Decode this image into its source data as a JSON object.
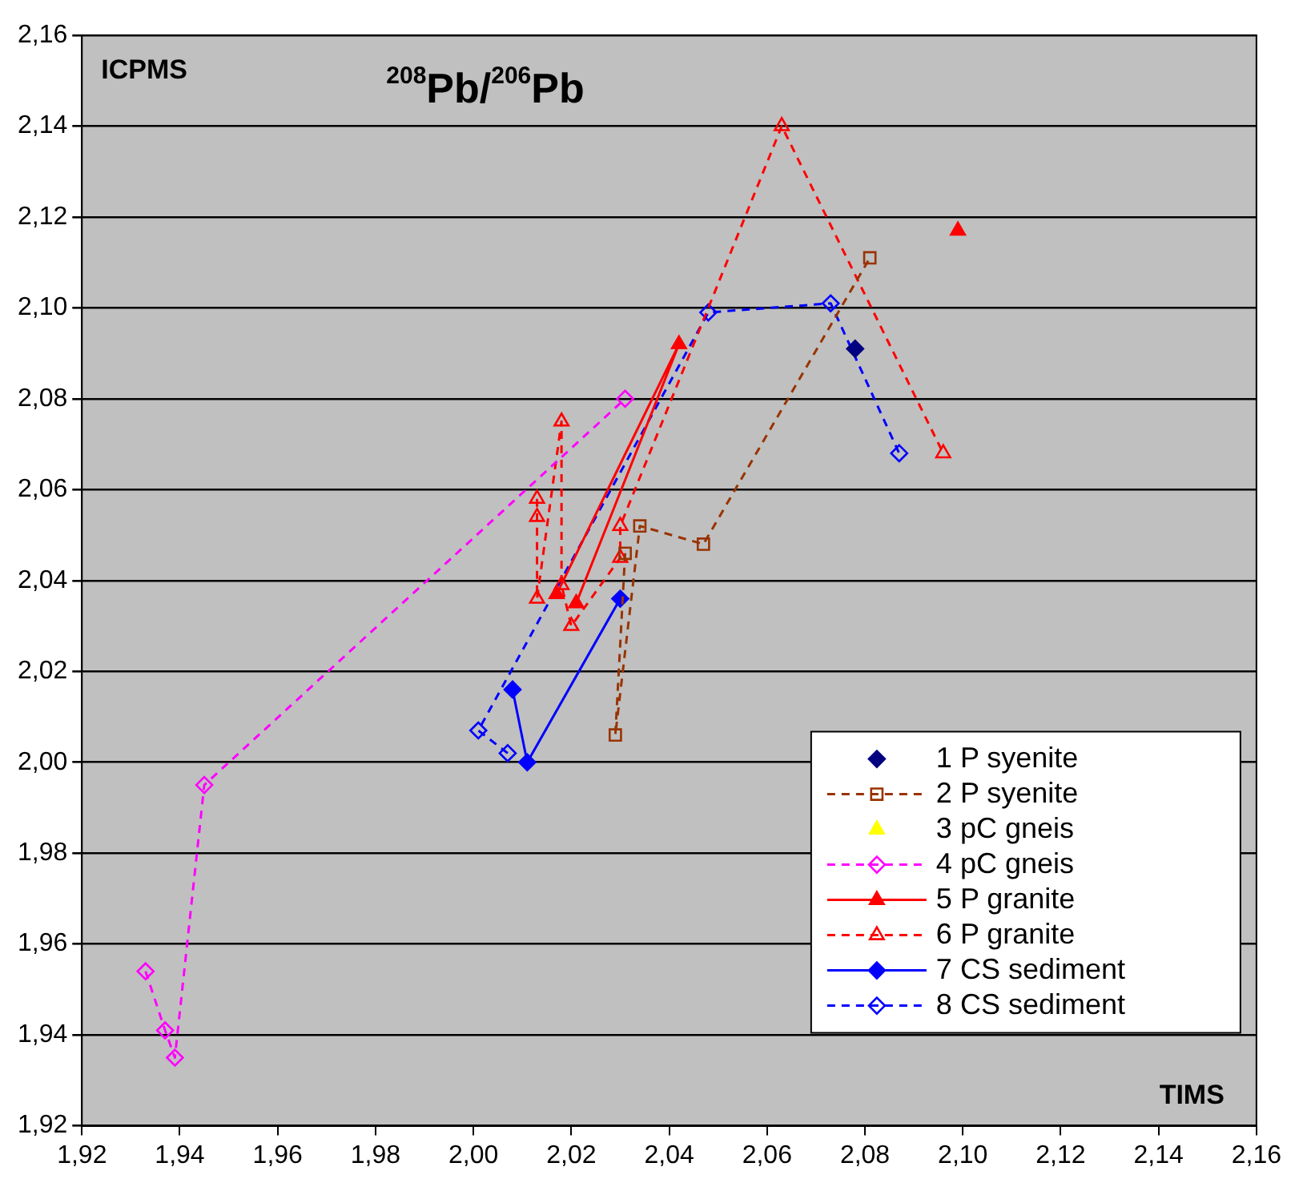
{
  "chart_data": {
    "type": "line",
    "title": "$^{208}$Pb/$^{206}$Pb",
    "xlabel": "TIMS",
    "ylabel": "ICPMS",
    "xlim": [
      1.92,
      2.16
    ],
    "ylim": [
      1.92,
      2.16
    ],
    "xticks": [
      {
        "value": 1.92,
        "label": "1,92"
      },
      {
        "value": 1.94,
        "label": "1,94"
      },
      {
        "value": 1.96,
        "label": "1,96"
      },
      {
        "value": 1.98,
        "label": "1,98"
      },
      {
        "value": 2.0,
        "label": "2,00"
      },
      {
        "value": 2.02,
        "label": "2,02"
      },
      {
        "value": 2.04,
        "label": "2,04"
      },
      {
        "value": 2.06,
        "label": "2,06"
      },
      {
        "value": 2.08,
        "label": "2,08"
      },
      {
        "value": 2.1,
        "label": "2,10"
      },
      {
        "value": 2.12,
        "label": "2,12"
      },
      {
        "value": 2.14,
        "label": "2,14"
      },
      {
        "value": 2.16,
        "label": "2,16"
      }
    ],
    "yticks": [
      {
        "value": 1.92,
        "label": "1,92"
      },
      {
        "value": 1.94,
        "label": "1,94"
      },
      {
        "value": 1.96,
        "label": "1,96"
      },
      {
        "value": 1.98,
        "label": "1,98"
      },
      {
        "value": 2.0,
        "label": "2,00"
      },
      {
        "value": 2.02,
        "label": "2,02"
      },
      {
        "value": 2.04,
        "label": "2,04"
      },
      {
        "value": 2.06,
        "label": "2,06"
      },
      {
        "value": 2.08,
        "label": "2,08"
      },
      {
        "value": 2.1,
        "label": "2,10"
      },
      {
        "value": 2.12,
        "label": "2,12"
      },
      {
        "value": 2.14,
        "label": "2,14"
      },
      {
        "value": 2.16,
        "label": "2,16"
      }
    ],
    "grid": "y",
    "legend": "bottom right",
    "series": [
      {
        "name": "1 P syenite",
        "type": "scatter",
        "marker": "diamond",
        "color": "#000080",
        "x": [
          2.078
        ],
        "values": [
          2.091
        ]
      },
      {
        "name": "2 P syenite",
        "marker": "square",
        "line_style": "dashed",
        "color": "#993300",
        "x": [
          2.031,
          2.029,
          2.034,
          2.047,
          2.081
        ],
        "values": [
          2.046,
          2.006,
          2.052,
          2.048,
          2.111
        ]
      },
      {
        "name": "3 pC gneis",
        "type": "scatter",
        "marker": "triangle",
        "color": "#ffff00"
      },
      {
        "name": "4 pC gneis",
        "marker": "diamond",
        "line_style": "dashed",
        "color": "#ff00ff",
        "x": [
          1.933,
          1.937,
          1.939,
          1.945,
          2.031
        ],
        "values": [
          1.954,
          1.941,
          1.935,
          1.995,
          2.08
        ]
      },
      {
        "name": "5 P granite",
        "marker": "triangle",
        "line_style": "solid",
        "color": "#ff0000",
        "x": [
          2.017,
          2.042,
          2.021,
          2.06,
          2.099
        ],
        "values": [
          2.037,
          2.092,
          2.035,
          null,
          2.117
        ]
      },
      {
        "name": "6 P granite",
        "marker": "triangle",
        "line_style": "dashed",
        "color": "#ff0000",
        "x": [
          2.013,
          2.013,
          2.013,
          2.018,
          2.018,
          2.02,
          2.03,
          2.03,
          2.063,
          2.096
        ],
        "values": [
          2.058,
          2.054,
          2.036,
          2.075,
          2.039,
          2.03,
          2.045,
          2.052,
          2.14,
          2.068
        ]
      },
      {
        "name": "7 CS sediment",
        "marker": "diamond",
        "line_style": "solid",
        "color": "#0000ff",
        "x": [
          2.008,
          2.011,
          2.03
        ],
        "values": [
          2.016,
          2.0,
          2.036
        ]
      },
      {
        "name": "8 CS sediment",
        "marker": "diamond",
        "line_style": "dashed",
        "color": "#0000ff",
        "x": [
          2.007,
          2.001,
          2.048,
          2.073,
          2.087
        ],
        "values": [
          2.002,
          2.007,
          2.099,
          2.101,
          2.068
        ]
      }
    ]
  }
}
